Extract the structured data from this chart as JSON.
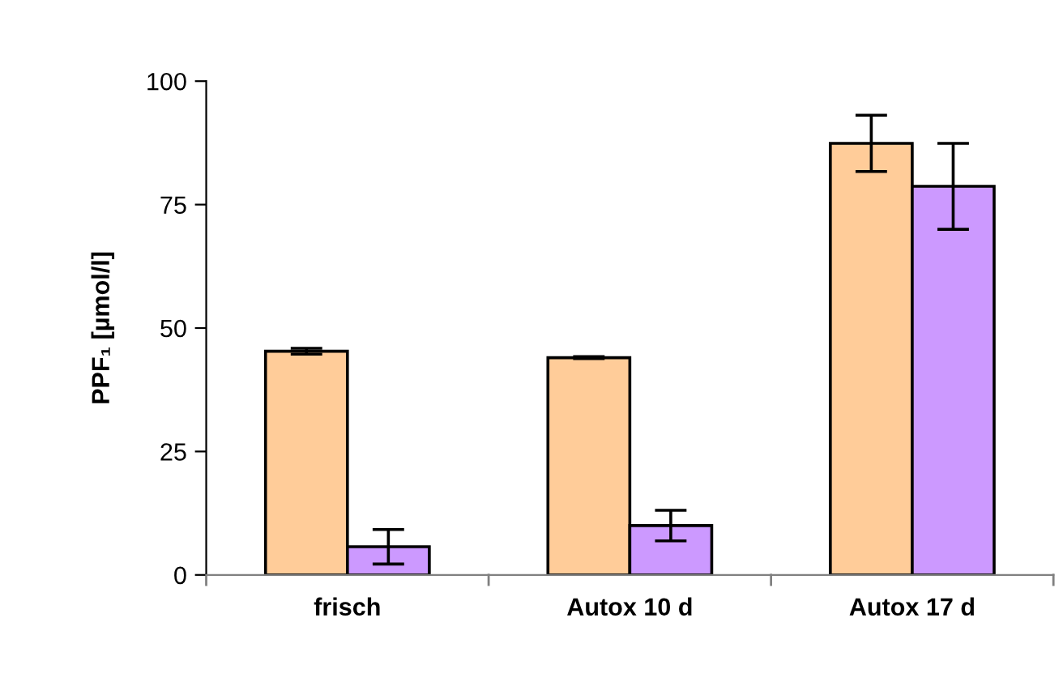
{
  "chart_data": {
    "type": "bar",
    "ylabel": "PPF₁ [µmol/l]",
    "categories": [
      "frisch",
      "Autox 10 d",
      "Autox 17 d"
    ],
    "series": [
      {
        "color": "#ffcc99",
        "values": [
          45.3,
          44.0,
          87.4
        ],
        "errors": [
          0.6,
          0.2,
          5.7
        ]
      },
      {
        "color": "#cc99ff",
        "values": [
          5.7,
          10.0,
          78.7
        ],
        "errors": [
          3.5,
          3.1,
          8.7
        ]
      }
    ],
    "ylim": [
      0,
      100
    ],
    "yticks": [
      0,
      25,
      50,
      75,
      100
    ],
    "grid": false,
    "legend": false
  }
}
